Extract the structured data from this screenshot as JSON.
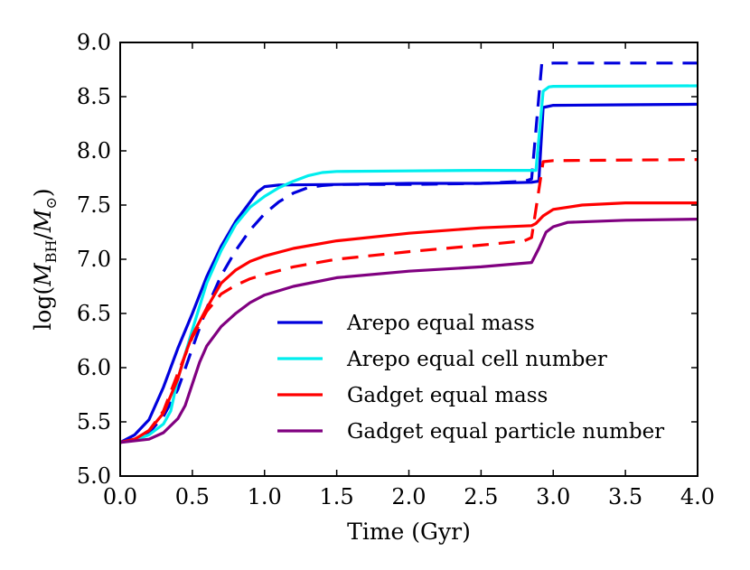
{
  "chart_data": {
    "type": "line",
    "title": "",
    "xlabel": "Time (Gyr)",
    "ylabel": "log(M_BH/M_⊙)",
    "ylabel_parts": {
      "prefix": "log(",
      "m1": "M",
      "sub1": "BH",
      "slash": "/",
      "m2": "M",
      "sub2": "⊙",
      "suffix": ")"
    },
    "xlim": [
      0.0,
      4.0
    ],
    "ylim": [
      5.0,
      9.0
    ],
    "x_ticks": [
      0.0,
      0.5,
      1.0,
      1.5,
      2.0,
      2.5,
      3.0,
      3.5,
      4.0
    ],
    "x_tick_labels": [
      "0.0",
      "0.5",
      "1.0",
      "1.5",
      "2.0",
      "2.5",
      "3.0",
      "3.5",
      "4.0"
    ],
    "y_ticks": [
      5.0,
      5.5,
      6.0,
      6.5,
      7.0,
      7.5,
      8.0,
      8.5,
      9.0
    ],
    "y_tick_labels": [
      "5.0",
      "5.5",
      "6.0",
      "6.5",
      "7.0",
      "7.5",
      "8.0",
      "8.5",
      "9.0"
    ],
    "grid": false,
    "legend_position": "lower-right",
    "series": [
      {
        "name": "Arepo equal mass",
        "color": "#0000dd",
        "style": "solid",
        "points": [
          [
            0,
            5.31
          ],
          [
            0.1,
            5.38
          ],
          [
            0.2,
            5.52
          ],
          [
            0.3,
            5.82
          ],
          [
            0.4,
            6.18
          ],
          [
            0.5,
            6.5
          ],
          [
            0.6,
            6.84
          ],
          [
            0.7,
            7.12
          ],
          [
            0.8,
            7.35
          ],
          [
            0.9,
            7.53
          ],
          [
            0.95,
            7.62
          ],
          [
            1.0,
            7.67
          ],
          [
            1.1,
            7.685
          ],
          [
            1.5,
            7.69
          ],
          [
            2.0,
            7.7
          ],
          [
            2.5,
            7.7
          ],
          [
            2.85,
            7.71
          ],
          [
            2.9,
            7.72
          ],
          [
            2.93,
            8.4
          ],
          [
            3.0,
            8.42
          ],
          [
            3.5,
            8.425
          ],
          [
            4.0,
            8.43
          ]
        ]
      },
      {
        "name": "Arepo equal mass (dashed)",
        "color": "#0000dd",
        "style": "dashed",
        "legend": false,
        "points": [
          [
            0,
            5.31
          ],
          [
            0.1,
            5.34
          ],
          [
            0.2,
            5.4
          ],
          [
            0.3,
            5.55
          ],
          [
            0.4,
            5.8
          ],
          [
            0.5,
            6.18
          ],
          [
            0.6,
            6.55
          ],
          [
            0.7,
            6.85
          ],
          [
            0.8,
            7.08
          ],
          [
            0.9,
            7.27
          ],
          [
            1.0,
            7.42
          ],
          [
            1.1,
            7.53
          ],
          [
            1.2,
            7.61
          ],
          [
            1.3,
            7.66
          ],
          [
            1.4,
            7.68
          ],
          [
            1.5,
            7.69
          ],
          [
            2.0,
            7.69
          ],
          [
            2.5,
            7.7
          ],
          [
            2.8,
            7.72
          ],
          [
            2.85,
            7.74
          ],
          [
            2.92,
            8.8
          ],
          [
            3.0,
            8.81
          ],
          [
            4.0,
            8.81
          ]
        ]
      },
      {
        "name": "Arepo equal cell number",
        "color": "#00eeee",
        "style": "solid",
        "points": [
          [
            0,
            5.31
          ],
          [
            0.1,
            5.33
          ],
          [
            0.2,
            5.38
          ],
          [
            0.3,
            5.48
          ],
          [
            0.35,
            5.6
          ],
          [
            0.4,
            5.9
          ],
          [
            0.5,
            6.35
          ],
          [
            0.6,
            6.78
          ],
          [
            0.7,
            7.08
          ],
          [
            0.8,
            7.32
          ],
          [
            0.9,
            7.48
          ],
          [
            1.0,
            7.58
          ],
          [
            1.1,
            7.66
          ],
          [
            1.2,
            7.72
          ],
          [
            1.3,
            7.77
          ],
          [
            1.4,
            7.8
          ],
          [
            1.5,
            7.81
          ],
          [
            2.0,
            7.815
          ],
          [
            2.5,
            7.82
          ],
          [
            2.88,
            7.82
          ],
          [
            2.93,
            8.55
          ],
          [
            2.97,
            8.59
          ],
          [
            3.0,
            8.595
          ],
          [
            4.0,
            8.6
          ]
        ]
      },
      {
        "name": "Gadget equal mass",
        "color": "#ff0000",
        "style": "solid",
        "points": [
          [
            0,
            5.31
          ],
          [
            0.1,
            5.34
          ],
          [
            0.2,
            5.42
          ],
          [
            0.3,
            5.58
          ],
          [
            0.4,
            5.9
          ],
          [
            0.45,
            6.12
          ],
          [
            0.5,
            6.3
          ],
          [
            0.6,
            6.55
          ],
          [
            0.7,
            6.78
          ],
          [
            0.8,
            6.9
          ],
          [
            0.9,
            6.98
          ],
          [
            1.0,
            7.03
          ],
          [
            1.2,
            7.1
          ],
          [
            1.5,
            7.17
          ],
          [
            2.0,
            7.24
          ],
          [
            2.5,
            7.29
          ],
          [
            2.85,
            7.31
          ],
          [
            2.88,
            7.33
          ],
          [
            2.93,
            7.4
          ],
          [
            3.0,
            7.46
          ],
          [
            3.2,
            7.5
          ],
          [
            3.5,
            7.52
          ],
          [
            4.0,
            7.52
          ]
        ]
      },
      {
        "name": "Gadget equal mass (dashed)",
        "color": "#ff0000",
        "style": "dashed",
        "legend": false,
        "points": [
          [
            0,
            5.31
          ],
          [
            0.1,
            5.34
          ],
          [
            0.2,
            5.42
          ],
          [
            0.3,
            5.6
          ],
          [
            0.4,
            5.95
          ],
          [
            0.5,
            6.28
          ],
          [
            0.6,
            6.52
          ],
          [
            0.7,
            6.68
          ],
          [
            0.8,
            6.76
          ],
          [
            0.9,
            6.82
          ],
          [
            1.0,
            6.86
          ],
          [
            1.2,
            6.93
          ],
          [
            1.5,
            7.0
          ],
          [
            2.0,
            7.07
          ],
          [
            2.5,
            7.13
          ],
          [
            2.8,
            7.17
          ],
          [
            2.85,
            7.2
          ],
          [
            2.93,
            7.9
          ],
          [
            3.0,
            7.91
          ],
          [
            4.0,
            7.92
          ]
        ]
      },
      {
        "name": "Gadget equal particle number",
        "color": "#800080",
        "style": "solid",
        "points": [
          [
            0,
            5.31
          ],
          [
            0.2,
            5.34
          ],
          [
            0.3,
            5.4
          ],
          [
            0.4,
            5.53
          ],
          [
            0.45,
            5.65
          ],
          [
            0.5,
            5.85
          ],
          [
            0.55,
            6.05
          ],
          [
            0.6,
            6.2
          ],
          [
            0.7,
            6.38
          ],
          [
            0.8,
            6.5
          ],
          [
            0.9,
            6.6
          ],
          [
            1.0,
            6.67
          ],
          [
            1.2,
            6.75
          ],
          [
            1.5,
            6.83
          ],
          [
            2.0,
            6.89
          ],
          [
            2.5,
            6.93
          ],
          [
            2.85,
            6.97
          ],
          [
            2.9,
            7.1
          ],
          [
            2.95,
            7.25
          ],
          [
            3.0,
            7.3
          ],
          [
            3.1,
            7.34
          ],
          [
            3.5,
            7.36
          ],
          [
            4.0,
            7.37
          ]
        ]
      }
    ]
  }
}
